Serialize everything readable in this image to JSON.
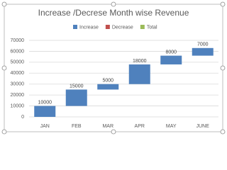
{
  "chart_data": {
    "type": "waterfall",
    "title": "Increase /Decrese Month wise Revenue",
    "categories": [
      "JAN",
      "FEB",
      "MAR",
      "APR",
      "MAY",
      "JUNE"
    ],
    "values": [
      10000,
      15000,
      5000,
      18000,
      8000,
      7000
    ],
    "legend": [
      {
        "name": "Increase",
        "color": "#4f81bd"
      },
      {
        "name": "Decrease",
        "color": "#c0504d"
      },
      {
        "name": "Total",
        "color": "#9bbb59"
      }
    ],
    "ylim": [
      0,
      70000
    ],
    "yticks": [
      0,
      10000,
      20000,
      30000,
      40000,
      50000,
      60000,
      70000
    ],
    "grid": true
  }
}
